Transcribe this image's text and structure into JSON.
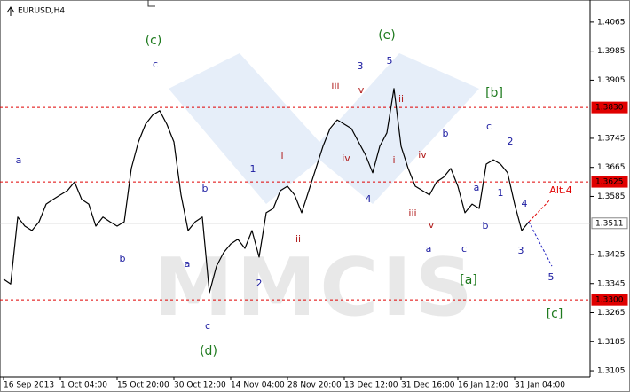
{
  "chart_data": {
    "type": "line",
    "title": "EURUSD,H4",
    "categories": [
      "16 Sep 2013",
      null,
      null,
      null,
      null,
      null,
      null,
      null,
      "1 Oct 04:00",
      null,
      null,
      null,
      null,
      null,
      null,
      null,
      "15 Oct 20:00",
      null,
      null,
      null,
      null,
      null,
      null,
      null,
      "30 Oct 12:00",
      null,
      null,
      null,
      null,
      null,
      null,
      null,
      "14 Nov 04:00",
      null,
      null,
      null,
      null,
      null,
      null,
      null,
      "28 Nov 20:00",
      null,
      null,
      null,
      null,
      null,
      null,
      null,
      "13 Dec 12:00",
      null,
      null,
      null,
      null,
      null,
      null,
      null,
      "31 Dec 16:00",
      null,
      null,
      null,
      null,
      null,
      null,
      null,
      "16 Jan 12:00",
      null,
      null,
      null,
      null,
      null,
      null,
      null,
      "31 Jan 04:00",
      null,
      null
    ],
    "series": [
      {
        "color": "#000000",
        "values": [
          1.3357,
          1.3344,
          1.3528,
          1.3503,
          1.3491,
          1.3515,
          1.3564,
          1.3577,
          1.3589,
          1.3601,
          1.3625,
          1.3577,
          1.3564,
          1.3503,
          1.3528,
          1.3515,
          1.3503,
          1.3515,
          1.3662,
          1.3735,
          1.3784,
          1.3809,
          1.3821,
          1.3784,
          1.3735,
          1.3589,
          1.3491,
          1.3515,
          1.3528,
          1.332,
          1.3393,
          1.343,
          1.3454,
          1.3467,
          1.3442,
          1.3491,
          1.3418,
          1.354,
          1.3552,
          1.3601,
          1.3613,
          1.3589,
          1.354,
          1.3601,
          1.3662,
          1.3723,
          1.3772,
          1.3796,
          1.3784,
          1.3772,
          1.3735,
          1.3699,
          1.365,
          1.3723,
          1.376,
          1.3882,
          1.3723,
          1.3662,
          1.3613,
          1.3601,
          1.3589,
          1.3625,
          1.3638,
          1.3662,
          1.3613,
          1.354,
          1.3564,
          1.3552,
          1.3674,
          1.3686,
          1.3674,
          1.365,
          1.3564,
          1.3491,
          1.3515
        ]
      }
    ],
    "ylim": [
      1.3088,
      1.4116
    ],
    "yticks": [
      1.4065,
      1.3985,
      1.3905,
      1.3745,
      1.3665,
      1.3585,
      1.3425,
      1.3345,
      1.3265,
      1.3185,
      1.3105
    ],
    "levels": [
      {
        "value": 1.383,
        "label": "1.3830",
        "color": "#e00000",
        "style": "dashed"
      },
      {
        "value": 1.3625,
        "label": "1.3625",
        "color": "#e00000",
        "style": "dashed"
      },
      {
        "value": 1.33,
        "label": "1.3300",
        "color": "#e00000",
        "style": "dashed"
      },
      {
        "value": 1.3511,
        "label": "1.3511",
        "color": "#c0c0c0",
        "style": "solid"
      }
    ],
    "annotations": [
      {
        "text": "(c)",
        "color": "#1e7a1e"
      },
      {
        "text": "c",
        "color": "#1a1aa0"
      },
      {
        "text": "a",
        "color": "#1a1aa0"
      },
      {
        "text": "b",
        "color": "#1a1aa0"
      },
      {
        "text": "b",
        "color": "#1a1aa0"
      },
      {
        "text": "a",
        "color": "#1a1aa0"
      },
      {
        "text": "c",
        "color": "#1a1aa0"
      },
      {
        "text": "(d)",
        "color": "#1e7a1e"
      },
      {
        "text": "2",
        "color": "#1a1aa0"
      },
      {
        "text": "1",
        "color": "#1a1aa0"
      },
      {
        "text": "i",
        "color": "#b01a1a"
      },
      {
        "text": "ii",
        "color": "#b01a1a"
      },
      {
        "text": "iii",
        "color": "#b01a1a"
      },
      {
        "text": "v",
        "color": "#b01a1a"
      },
      {
        "text": "iv",
        "color": "#b01a1a"
      },
      {
        "text": "4",
        "color": "#1a1aa0"
      },
      {
        "text": "3",
        "color": "#1a1aa0"
      },
      {
        "text": "5",
        "color": "#1a1aa0"
      },
      {
        "text": "(e)",
        "color": "#1e7a1e"
      },
      {
        "text": "ii",
        "color": "#b01a1a"
      },
      {
        "text": "i",
        "color": "#b01a1a"
      },
      {
        "text": "iii",
        "color": "#b01a1a"
      },
      {
        "text": "iv",
        "color": "#b01a1a"
      },
      {
        "text": "v",
        "color": "#b01a1a"
      },
      {
        "text": "b",
        "color": "#1a1aa0"
      },
      {
        "text": "a",
        "color": "#1a1aa0"
      },
      {
        "text": "c",
        "color": "#1a1aa0"
      },
      {
        "text": "[a]",
        "color": "#1e7a1e"
      },
      {
        "text": "[b]",
        "color": "#1e7a1e"
      },
      {
        "text": "c",
        "color": "#1a1aa0"
      },
      {
        "text": "2",
        "color": "#1a1aa0"
      },
      {
        "text": "a",
        "color": "#1a1aa0"
      },
      {
        "text": "1",
        "color": "#1a1aa0"
      },
      {
        "text": "b",
        "color": "#1a1aa0"
      },
      {
        "text": "4",
        "color": "#1a1aa0"
      },
      {
        "text": "3",
        "color": "#1a1aa0"
      },
      {
        "text": "5",
        "color": "#1a1aa0"
      },
      {
        "text": "[c]",
        "color": "#1e7a1e"
      },
      {
        "text": "Alt.4",
        "color": "#e00000"
      }
    ]
  }
}
